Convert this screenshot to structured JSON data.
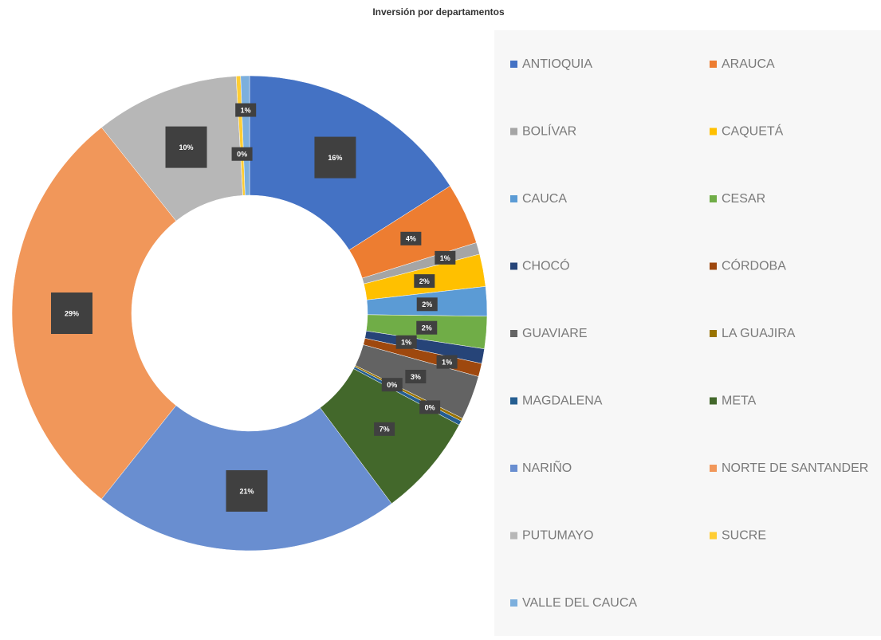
{
  "chart_data": {
    "type": "pie",
    "donut": true,
    "title": "Inversión por departamentos",
    "categories": [
      "ANTIOQUIA",
      "ARAUCA",
      "BOLÍVAR",
      "CAQUETÁ",
      "CAUCA",
      "CESAR",
      "CHOCÓ",
      "CÓRDOBA",
      "GUAVIARE",
      "LA GUAJIRA",
      "MAGDALENA",
      "META",
      "NARIÑO",
      "NORTE DE SANTANDER",
      "PUTUMAYO",
      "SUCRE",
      "VALLE DEL CAUCA"
    ],
    "values": [
      16.0,
      4.2,
      0.8,
      2.2,
      2.0,
      2.2,
      1.0,
      0.9,
      3.0,
      0.2,
      0.3,
      7.0,
      20.9,
      28.6,
      9.8,
      0.3,
      0.6
    ],
    "value_labels": [
      "16%",
      "4%",
      "1%",
      "2%",
      "2%",
      "2%",
      "1%",
      "1%",
      "3%",
      "0%",
      "0%",
      "7%",
      "21%",
      "29%",
      "10%",
      "0%",
      "1%"
    ],
    "colors": [
      "#4472c4",
      "#ed7d31",
      "#a5a5a5",
      "#ffc000",
      "#5b9bd5",
      "#70ad47",
      "#264478",
      "#9e480e",
      "#636363",
      "#997300",
      "#255e91",
      "#43682b",
      "#698ed0",
      "#f1975a",
      "#b7b7b7",
      "#ffcd33",
      "#7cafdd"
    ],
    "legend": "right"
  }
}
